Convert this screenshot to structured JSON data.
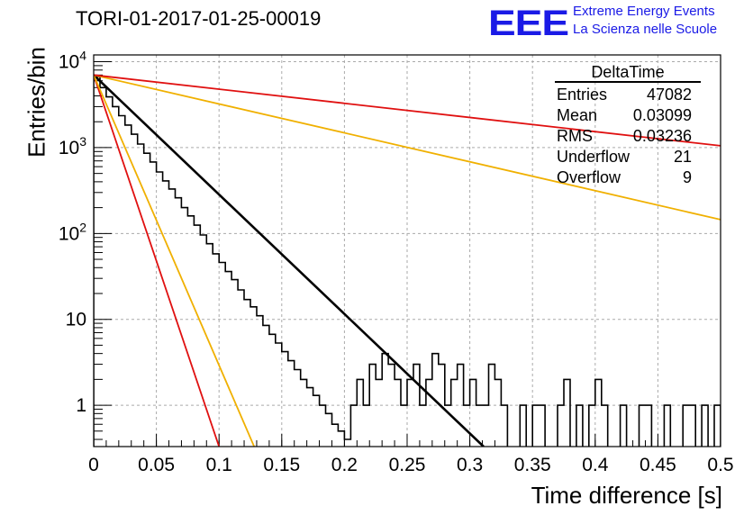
{
  "chart_data": {
    "type": "histogram",
    "title": "TORI-01-2017-01-25-00019",
    "xlabel": "Time difference [s]",
    "ylabel": "Entries/bin",
    "xlim": [
      0,
      0.5
    ],
    "ylim": [
      0.33,
      12000
    ],
    "yscale": "log",
    "grid": true,
    "x_ticks": [
      "0",
      "0.05",
      "0.1",
      "0.15",
      "0.2",
      "0.25",
      "0.3",
      "0.35",
      "0.4",
      "0.45",
      "0.5"
    ],
    "y_ticks": [
      "1",
      "10",
      "10^2",
      "10^3",
      "10^4"
    ],
    "bin_width": 0.005,
    "bin_centers_start": 0.0025,
    "histogram_counts": [
      6700,
      5000,
      3900,
      3000,
      2350,
      1830,
      1430,
      1100,
      860,
      680,
      520,
      410,
      330,
      260,
      200,
      160,
      125,
      96,
      76,
      58,
      46,
      36,
      29,
      22,
      17,
      14,
      11,
      8.5,
      6.7,
      5.3,
      4.2,
      3.3,
      2.6,
      2,
      1.6,
      1.3,
      1,
      0.8,
      0.6,
      0.5,
      0.4,
      1,
      2,
      1,
      3,
      2,
      4,
      3,
      2,
      1,
      2,
      3,
      1,
      2,
      4,
      3,
      1,
      2,
      3,
      1,
      2,
      1,
      1,
      3,
      2,
      1,
      0,
      0,
      1,
      0,
      1,
      1,
      0,
      0,
      1,
      2,
      0,
      1,
      0,
      1,
      2,
      1,
      0,
      0,
      1,
      0,
      0,
      1,
      1,
      0,
      0,
      1,
      0,
      0,
      1,
      1,
      0,
      1,
      0,
      1
    ],
    "fits": [
      {
        "color": "#000000",
        "y0": 7000,
        "x_at_y_0_33": 0.311
      },
      {
        "color": "#e01010",
        "y0": 7000,
        "x_at_y_0_33": 0.1
      },
      {
        "color": "#f0b000",
        "y0": 7000,
        "x_at_y_0_33": 0.128
      },
      {
        "color": "#f0b000",
        "y0": 7000,
        "y_at_0_5": 145
      },
      {
        "color": "#e01010",
        "y0": 7000,
        "y_at_0_5": 1050
      }
    ],
    "stats_box": {
      "name": "DeltaTime",
      "entries": [
        {
          "label": "Entries",
          "value": "47082"
        },
        {
          "label": "Mean",
          "value": "0.03099"
        },
        {
          "label": "RMS",
          "value": "0.03236"
        },
        {
          "label": "Underflow",
          "value": "21"
        },
        {
          "label": "Overflow",
          "value": "9"
        }
      ]
    }
  },
  "logo": {
    "mark": "EEE",
    "line1": "Extreme Energy Events",
    "line2": "La Scienza nelle Scuole"
  }
}
